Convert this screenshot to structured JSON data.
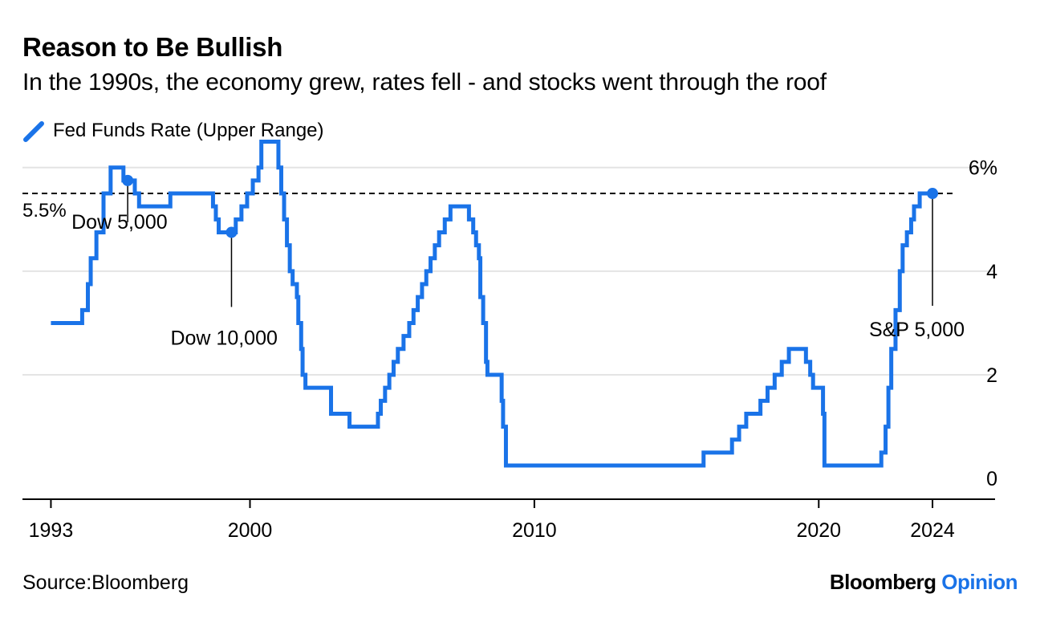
{
  "header": {
    "title": "Reason to Be Bullish",
    "subtitle": "In the 1990s, the economy grew, rates fell - and stocks went through the roof"
  },
  "legend": {
    "label": "Fed Funds Rate (Upper Range)",
    "icon": "diagonal-line-swatch"
  },
  "footer": {
    "source": "Source:Bloomberg",
    "brand_name": "Bloomberg",
    "brand_section": "Opinion"
  },
  "colors": {
    "series": "#1a73e8",
    "grid": "#e4e4e4",
    "axis": "#000000",
    "reference": "#000000"
  },
  "chart_data": {
    "type": "line",
    "title": "Reason to Be Bullish",
    "subtitle": "In the 1990s, the economy grew, rates fell - and stocks went through the roof",
    "xlabel": "",
    "ylabel": "",
    "xlim": [
      1992,
      2026.2
    ],
    "ylim": [
      -0.4,
      6.6
    ],
    "x_ticks": [
      1993,
      2000,
      2010,
      2020,
      2024
    ],
    "x_tick_labels": [
      "1993",
      "2000",
      "2010",
      "2020",
      "2024"
    ],
    "y_ticks": [
      0,
      2,
      4,
      6
    ],
    "y_tick_labels": [
      "0",
      "2",
      "4",
      "6%"
    ],
    "y_axis_side": "right",
    "grid": true,
    "legend_position": "top-left",
    "reference_line": {
      "y": 5.5,
      "label": "5.5%",
      "style": "dashed"
    },
    "series": [
      {
        "name": "Fed Funds Rate (Upper Range)",
        "step": true,
        "points": [
          [
            1993.0,
            3.0
          ],
          [
            1994.1,
            3.25
          ],
          [
            1994.3,
            3.75
          ],
          [
            1994.4,
            4.25
          ],
          [
            1994.6,
            4.75
          ],
          [
            1994.85,
            5.5
          ],
          [
            1995.1,
            6.0
          ],
          [
            1995.55,
            5.75
          ],
          [
            1995.95,
            5.5
          ],
          [
            1996.1,
            5.25
          ],
          [
            1997.2,
            5.5
          ],
          [
            1998.7,
            5.25
          ],
          [
            1998.8,
            5.0
          ],
          [
            1998.9,
            4.75
          ],
          [
            1999.5,
            5.0
          ],
          [
            1999.7,
            5.25
          ],
          [
            1999.9,
            5.5
          ],
          [
            2000.1,
            5.75
          ],
          [
            2000.3,
            6.0
          ],
          [
            2000.4,
            6.5
          ],
          [
            2001.0,
            6.0
          ],
          [
            2001.1,
            5.5
          ],
          [
            2001.2,
            5.0
          ],
          [
            2001.3,
            4.5
          ],
          [
            2001.4,
            4.0
          ],
          [
            2001.5,
            3.75
          ],
          [
            2001.65,
            3.5
          ],
          [
            2001.7,
            3.0
          ],
          [
            2001.8,
            2.5
          ],
          [
            2001.85,
            2.0
          ],
          [
            2001.95,
            1.75
          ],
          [
            2002.85,
            1.25
          ],
          [
            2003.5,
            1.0
          ],
          [
            2004.5,
            1.25
          ],
          [
            2004.6,
            1.5
          ],
          [
            2004.75,
            1.75
          ],
          [
            2004.9,
            2.0
          ],
          [
            2005.05,
            2.25
          ],
          [
            2005.2,
            2.5
          ],
          [
            2005.4,
            2.75
          ],
          [
            2005.6,
            3.0
          ],
          [
            2005.75,
            3.25
          ],
          [
            2005.9,
            3.5
          ],
          [
            2006.05,
            3.75
          ],
          [
            2006.2,
            4.0
          ],
          [
            2006.35,
            4.25
          ],
          [
            2006.5,
            4.5
          ],
          [
            2006.65,
            4.75
          ],
          [
            2006.85,
            5.0
          ],
          [
            2007.05,
            5.25
          ],
          [
            2007.7,
            5.0
          ],
          [
            2007.85,
            4.75
          ],
          [
            2007.95,
            4.5
          ],
          [
            2008.05,
            4.25
          ],
          [
            2008.1,
            3.5
          ],
          [
            2008.2,
            3.0
          ],
          [
            2008.3,
            2.25
          ],
          [
            2008.35,
            2.0
          ],
          [
            2008.85,
            1.5
          ],
          [
            2008.9,
            1.0
          ],
          [
            2009.0,
            0.25
          ],
          [
            2015.95,
            0.5
          ],
          [
            2016.95,
            0.75
          ],
          [
            2017.2,
            1.0
          ],
          [
            2017.45,
            1.25
          ],
          [
            2017.95,
            1.5
          ],
          [
            2018.2,
            1.75
          ],
          [
            2018.45,
            2.0
          ],
          [
            2018.7,
            2.25
          ],
          [
            2018.95,
            2.5
          ],
          [
            2019.55,
            2.25
          ],
          [
            2019.7,
            2.0
          ],
          [
            2019.8,
            1.75
          ],
          [
            2020.15,
            1.25
          ],
          [
            2020.2,
            0.25
          ],
          [
            2022.2,
            0.5
          ],
          [
            2022.35,
            1.0
          ],
          [
            2022.45,
            1.75
          ],
          [
            2022.55,
            2.5
          ],
          [
            2022.7,
            3.25
          ],
          [
            2022.85,
            4.0
          ],
          [
            2022.95,
            4.5
          ],
          [
            2023.1,
            4.75
          ],
          [
            2023.25,
            5.0
          ],
          [
            2023.35,
            5.25
          ],
          [
            2023.55,
            5.5
          ],
          [
            2024.0,
            5.5
          ]
        ]
      }
    ],
    "annotations": [
      {
        "label": "Dow 5,000",
        "x": 1995.7,
        "y": 5.75
      },
      {
        "label": "Dow 10,000",
        "x": 1999.35,
        "y": 4.75
      },
      {
        "label": "S&P 5,000",
        "x": 2024.0,
        "y": 5.5
      }
    ]
  }
}
